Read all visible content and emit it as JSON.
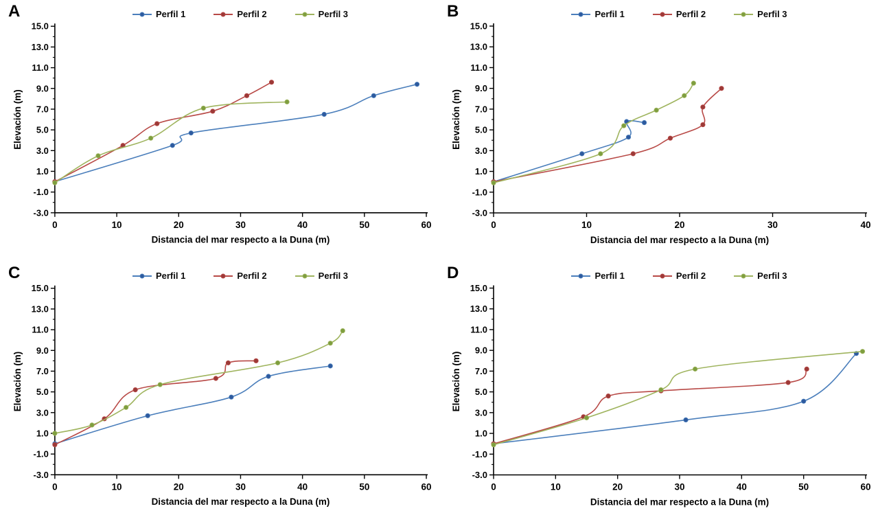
{
  "figure": {
    "kind": "four-panel beach/dune elevation profile comparison",
    "background": "#ffffff",
    "text_color": "#000000",
    "legend_position": "top-center"
  },
  "chart_data": [
    {
      "panel": "A",
      "type": "line",
      "xlabel": "Distancia del mar respecto a la Duna (m)",
      "ylabel": "Elevación (m)",
      "xlim": [
        0,
        60
      ],
      "ylim": [
        -3,
        15
      ],
      "xticks": [
        0,
        10,
        20,
        30,
        40,
        50,
        60
      ],
      "yticks": [
        15.0,
        13.0,
        11.0,
        9.0,
        7.0,
        5.0,
        3.0,
        1.0,
        -1.0,
        -3.0
      ],
      "grid": "off",
      "smoothed_lines": true,
      "series": [
        {
          "name": "Perfil 1",
          "line_color": "#4a7ebb",
          "marker_color": "#2e5a9e",
          "points": [
            [
              0,
              0
            ],
            [
              19,
              3.5
            ],
            [
              22,
              4.7
            ],
            [
              43.5,
              6.5
            ],
            [
              51.5,
              8.3
            ],
            [
              58.5,
              9.4
            ]
          ]
        },
        {
          "name": "Perfil 2",
          "line_color": "#b84946",
          "marker_color": "#9c3a38",
          "points": [
            [
              0,
              0
            ],
            [
              11,
              3.5
            ],
            [
              16.5,
              5.6
            ],
            [
              25.5,
              6.8
            ],
            [
              31,
              8.3
            ],
            [
              35,
              9.6
            ]
          ]
        },
        {
          "name": "Perfil 3",
          "line_color": "#9fb45e",
          "marker_color": "#7e9e3f",
          "points": [
            [
              0,
              -0.1
            ],
            [
              7,
              2.5
            ],
            [
              15.5,
              4.2
            ],
            [
              24,
              7.1
            ],
            [
              37.5,
              7.7
            ]
          ]
        }
      ]
    },
    {
      "panel": "B",
      "type": "line",
      "xlabel": "Distancia del mar respecto a la Duna (m)",
      "ylabel": "Elevación (m)",
      "xlim": [
        0,
        40
      ],
      "ylim": [
        -3,
        15
      ],
      "xticks": [
        0,
        10,
        20,
        30,
        40
      ],
      "yticks": [
        15.0,
        13.0,
        11.0,
        9.0,
        7.0,
        5.0,
        3.0,
        1.0,
        -1.0,
        -3.0
      ],
      "grid": "off",
      "smoothed_lines": true,
      "series": [
        {
          "name": "Perfil 1",
          "line_color": "#4a7ebb",
          "marker_color": "#2e5a9e",
          "points": [
            [
              0,
              0
            ],
            [
              9.5,
              2.7
            ],
            [
              14.5,
              4.3
            ],
            [
              14.3,
              5.8
            ],
            [
              16.2,
              5.7
            ]
          ]
        },
        {
          "name": "Perfil 2",
          "line_color": "#b84946",
          "marker_color": "#9c3a38",
          "points": [
            [
              0,
              0
            ],
            [
              15,
              2.7
            ],
            [
              19,
              4.2
            ],
            [
              22.5,
              5.5
            ],
            [
              22.5,
              7.2
            ],
            [
              24.5,
              9.0
            ]
          ]
        },
        {
          "name": "Perfil 3",
          "line_color": "#9fb45e",
          "marker_color": "#7e9e3f",
          "points": [
            [
              0,
              -0.1
            ],
            [
              11.5,
              2.7
            ],
            [
              14,
              5.4
            ],
            [
              17.5,
              6.9
            ],
            [
              20.5,
              8.3
            ],
            [
              21.5,
              9.5
            ]
          ]
        }
      ]
    },
    {
      "panel": "C",
      "type": "line",
      "xlabel": "Distancia del mar respecto a la Duna (m)",
      "ylabel": "Elevación (m)",
      "xlim": [
        0,
        60
      ],
      "ylim": [
        -3,
        15
      ],
      "xticks": [
        0,
        10,
        20,
        30,
        40,
        50,
        60
      ],
      "yticks": [
        15.0,
        13.0,
        11.0,
        9.0,
        7.0,
        5.0,
        3.0,
        1.0,
        -1.0,
        -3.0
      ],
      "grid": "off",
      "smoothed_lines": true,
      "series": [
        {
          "name": "Perfil 1",
          "line_color": "#4a7ebb",
          "marker_color": "#2e5a9e",
          "points": [
            [
              0,
              0
            ],
            [
              15,
              2.7
            ],
            [
              28.5,
              4.5
            ],
            [
              34.5,
              6.5
            ],
            [
              44.5,
              7.5
            ]
          ]
        },
        {
          "name": "Perfil 2",
          "line_color": "#b84946",
          "marker_color": "#9c3a38",
          "points": [
            [
              0,
              -0.1
            ],
            [
              8,
              2.4
            ],
            [
              13,
              5.2
            ],
            [
              26,
              6.3
            ],
            [
              28,
              7.8
            ],
            [
              32.5,
              8.0
            ]
          ]
        },
        {
          "name": "Perfil 3",
          "line_color": "#9fb45e",
          "marker_color": "#7e9e3f",
          "points": [
            [
              0,
              1.0
            ],
            [
              6,
              1.8
            ],
            [
              11.5,
              3.5
            ],
            [
              17,
              5.7
            ],
            [
              36,
              7.8
            ],
            [
              44.5,
              9.7
            ],
            [
              46.5,
              10.9
            ]
          ]
        }
      ]
    },
    {
      "panel": "D",
      "type": "line",
      "xlabel": "Distancia del mar respecto a la Duna (m)",
      "ylabel": "Elevación (m)",
      "xlim": [
        0,
        60
      ],
      "ylim": [
        -3,
        15
      ],
      "xticks": [
        0,
        10,
        20,
        30,
        40,
        50,
        60
      ],
      "yticks": [
        15.0,
        13.0,
        11.0,
        9.0,
        7.0,
        5.0,
        3.0,
        1.0,
        -1.0,
        -3.0
      ],
      "grid": "off",
      "smoothed_lines": true,
      "series": [
        {
          "name": "Perfil 1",
          "line_color": "#4a7ebb",
          "marker_color": "#2e5a9e",
          "points": [
            [
              0,
              0
            ],
            [
              31,
              2.3
            ],
            [
              50,
              4.1
            ],
            [
              58.5,
              8.7
            ]
          ]
        },
        {
          "name": "Perfil 2",
          "line_color": "#b84946",
          "marker_color": "#9c3a38",
          "points": [
            [
              0,
              0
            ],
            [
              14.5,
              2.6
            ],
            [
              18.5,
              4.6
            ],
            [
              27,
              5.1
            ],
            [
              47.5,
              5.9
            ],
            [
              50.5,
              7.2
            ]
          ]
        },
        {
          "name": "Perfil 3",
          "line_color": "#9fb45e",
          "marker_color": "#7e9e3f",
          "points": [
            [
              0,
              -0.1
            ],
            [
              15,
              2.5
            ],
            [
              27,
              5.2
            ],
            [
              32.5,
              7.2
            ],
            [
              59.5,
              8.9
            ]
          ]
        }
      ]
    }
  ]
}
